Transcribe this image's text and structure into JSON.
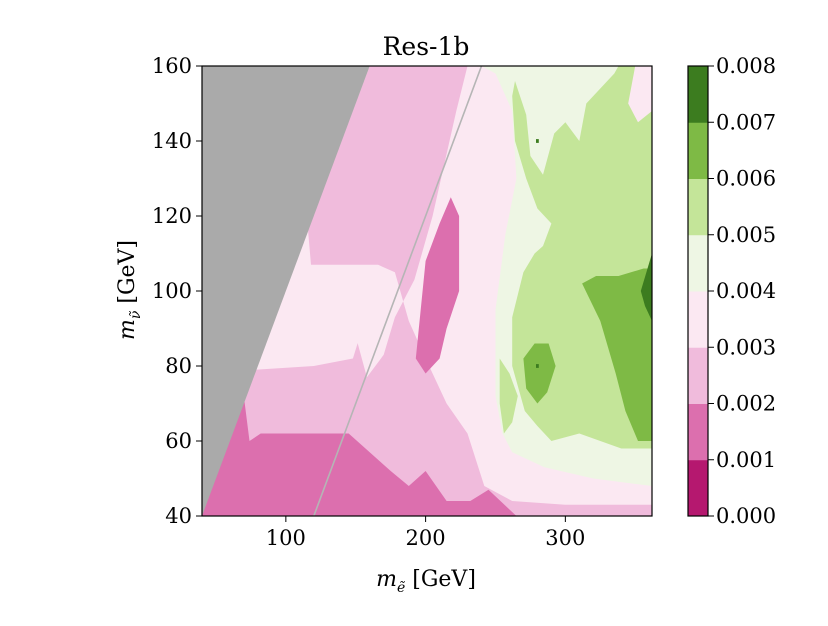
{
  "chart_data": {
    "type": "heatmap",
    "subtype": "filled-contour",
    "title": "Res-1b",
    "xlabel": "m_ẽ [GeV]",
    "ylabel": "m_ν̃ [GeV]",
    "xlabel_parts": {
      "symbol": "m",
      "sub": "ẽ",
      "unit": " [GeV]"
    },
    "ylabel_parts": {
      "symbol": "m",
      "sub": "ν̃",
      "unit": " [GeV]"
    },
    "xlim": [
      40,
      362
    ],
    "ylim": [
      40,
      160
    ],
    "xticks": [
      100,
      200,
      300
    ],
    "yticks": [
      40,
      60,
      80,
      100,
      120,
      140,
      160
    ],
    "xtick_labels": [
      "100",
      "200",
      "300"
    ],
    "ytick_labels": [
      "40",
      "60",
      "80",
      "100",
      "120",
      "140",
      "160"
    ],
    "grid": false,
    "excluded_region": {
      "color": "#aaaaaa",
      "polygon": [
        [
          40,
          40
        ],
        [
          40,
          160
        ],
        [
          160,
          160
        ],
        [
          40,
          40
        ]
      ]
    },
    "diagonal_line": {
      "color": "#b5b5b5",
      "points": [
        [
          120,
          40
        ],
        [
          240,
          160
        ]
      ]
    },
    "levels": [
      0.0,
      0.001,
      0.002,
      0.003,
      0.004,
      0.005,
      0.006,
      0.007,
      0.008
    ],
    "level_labels": [
      "0.000",
      "0.001",
      "0.002",
      "0.003",
      "0.004",
      "0.005",
      "0.006",
      "0.007",
      "0.008"
    ],
    "colormap": [
      "#b5186f",
      "#dc6fae",
      "#f0bbdc",
      "#fbe8f2",
      "#eef6e4",
      "#c4e599",
      "#7eba45",
      "#3c7c1f"
    ],
    "regions": [
      {
        "level_index": 1,
        "polygon": [
          [
            40,
            40
          ],
          [
            362,
            40
          ],
          [
            362,
            160
          ],
          [
            40,
            160
          ]
        ]
      },
      {
        "level_index": 2,
        "polygon": [
          [
            74,
            60
          ],
          [
            82,
            62
          ],
          [
            145,
            62
          ],
          [
            175,
            52
          ],
          [
            188,
            48
          ],
          [
            200,
            52
          ],
          [
            215,
            44
          ],
          [
            232,
            44
          ],
          [
            245,
            47
          ],
          [
            265,
            40
          ],
          [
            362,
            40
          ],
          [
            362,
            160
          ],
          [
            160,
            160
          ],
          [
            40,
            160
          ]
        ]
      },
      {
        "level_index": 3,
        "polygon": [
          [
            78,
            79
          ],
          [
            88,
            85
          ],
          [
            150,
            88
          ],
          [
            158,
            77
          ],
          [
            170,
            83
          ],
          [
            178,
            93
          ],
          [
            192,
            103
          ],
          [
            205,
            120
          ],
          [
            222,
            148
          ],
          [
            230,
            160
          ],
          [
            362,
            160
          ],
          [
            362,
            43
          ],
          [
            300,
            43
          ],
          [
            262,
            44
          ],
          [
            242,
            48
          ],
          [
            230,
            62
          ],
          [
            215,
            70
          ],
          [
            200,
            82
          ],
          [
            188,
            92
          ],
          [
            178,
            105
          ],
          [
            166,
            107
          ],
          [
            118,
            107
          ],
          [
            115,
            120
          ],
          [
            160,
            160
          ]
        ]
      },
      {
        "level_index": 3,
        "polygon": [
          [
            78,
            79
          ],
          [
            84,
            93
          ],
          [
            98,
            102
          ],
          [
            150,
            102
          ],
          [
            158,
            94
          ],
          [
            148,
            82
          ],
          [
            120,
            80
          ],
          [
            78,
            79
          ]
        ]
      },
      {
        "level_index": 4,
        "polygon": [
          [
            160,
            160
          ],
          [
            240,
            160
          ],
          [
            250,
            158
          ],
          [
            262,
            148
          ],
          [
            265,
            130
          ],
          [
            257,
            115
          ],
          [
            250,
            95
          ],
          [
            250,
            72
          ],
          [
            255,
            62
          ],
          [
            262,
            57
          ],
          [
            285,
            53
          ],
          [
            320,
            50
          ],
          [
            362,
            48
          ],
          [
            362,
            160
          ],
          [
            230,
            160
          ],
          [
            160,
            160
          ]
        ]
      },
      {
        "level_index": 5,
        "polygon": [
          [
            264,
            156
          ],
          [
            272,
            147
          ],
          [
            275,
            136
          ],
          [
            284,
            131
          ],
          [
            292,
            142
          ],
          [
            300,
            145
          ],
          [
            310,
            140
          ],
          [
            315,
            150
          ],
          [
            335,
            158
          ],
          [
            338,
            160
          ],
          [
            362,
            160
          ],
          [
            362,
            58
          ],
          [
            340,
            58
          ],
          [
            310,
            62
          ],
          [
            290,
            60
          ],
          [
            280,
            64
          ],
          [
            271,
            68
          ],
          [
            262,
            80
          ],
          [
            262,
            93
          ],
          [
            270,
            105
          ],
          [
            278,
            110
          ],
          [
            284,
            112
          ],
          [
            290,
            118
          ],
          [
            280,
            122
          ],
          [
            272,
            130
          ],
          [
            264,
            140
          ],
          [
            262,
            152
          ]
        ]
      },
      {
        "level_index": 5,
        "polygon": [
          [
            253,
            82
          ],
          [
            260,
            78
          ],
          [
            266,
            72
          ],
          [
            262,
            65
          ],
          [
            256,
            62
          ],
          [
            253,
            70
          ]
        ]
      },
      {
        "level_index": 6,
        "polygon": [
          [
            312,
            102
          ],
          [
            322,
            104
          ],
          [
            338,
            104
          ],
          [
            356,
            106
          ],
          [
            362,
            106
          ],
          [
            362,
            60
          ],
          [
            352,
            60
          ],
          [
            343,
            68
          ],
          [
            336,
            78
          ],
          [
            325,
            92
          ],
          [
            312,
            102
          ]
        ]
      },
      {
        "level_index": 6,
        "polygon": [
          [
            270,
            82
          ],
          [
            278,
            86
          ],
          [
            288,
            86
          ],
          [
            293,
            80
          ],
          [
            287,
            73
          ],
          [
            280,
            70
          ],
          [
            272,
            74
          ],
          [
            270,
            82
          ]
        ]
      },
      {
        "level_index": 7,
        "polygon": [
          [
            354,
            100
          ],
          [
            362,
            110
          ],
          [
            362,
            92
          ],
          [
            357,
            96
          ]
        ]
      },
      {
        "level_index": 7,
        "polygon": [
          [
            279,
            80.5
          ],
          [
            281,
            80.5
          ],
          [
            281,
            79.5
          ],
          [
            279,
            79.5
          ]
        ]
      },
      {
        "level_index": 7,
        "polygon": [
          [
            279,
            140.5
          ],
          [
            281,
            140.5
          ],
          [
            281,
            139.5
          ],
          [
            279,
            139.5
          ]
        ]
      },
      {
        "level_index": 1,
        "polygon": [
          [
            193,
            82
          ],
          [
            200,
            108
          ],
          [
            210,
            118
          ],
          [
            218,
            125
          ],
          [
            224,
            120
          ],
          [
            224,
            100
          ],
          [
            215,
            90
          ],
          [
            210,
            82
          ],
          [
            200,
            78
          ],
          [
            193,
            82
          ]
        ]
      },
      {
        "level_index": 3,
        "polygon": [
          [
            362,
            160
          ],
          [
            350,
            160
          ],
          [
            345,
            150
          ],
          [
            352,
            145
          ],
          [
            362,
            148
          ]
        ]
      }
    ]
  }
}
